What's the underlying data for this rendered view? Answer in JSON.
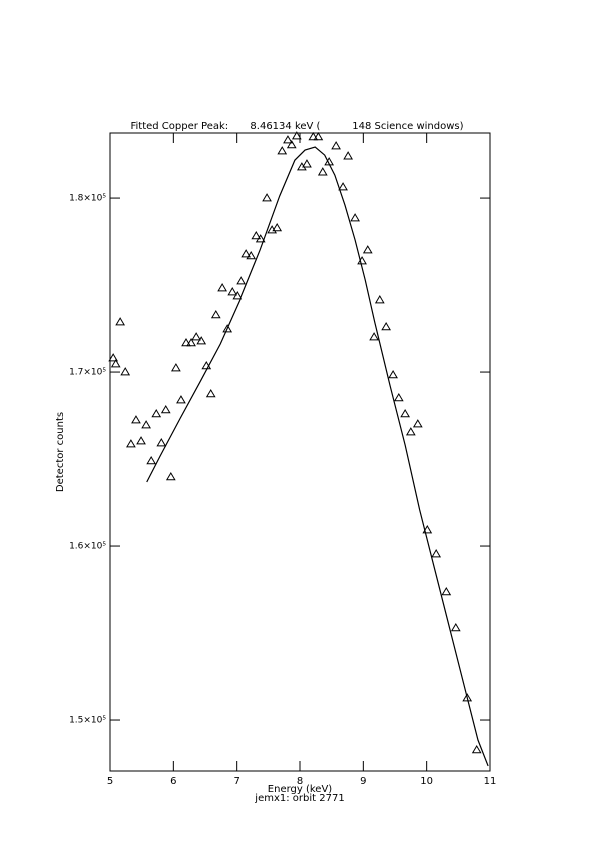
{
  "chart_data": {
    "type": "scatter",
    "title": "Fitted Copper Peak:       8.46134 keV (          148 Science windows)",
    "x_label": "Energy (keV)",
    "subtitle": "jemx1: orbit 2771",
    "y_label": "Detector counts",
    "xlim": [
      5,
      11
    ],
    "xticks": [
      5,
      6,
      7,
      8,
      9,
      10,
      11
    ],
    "ylim": [
      147070,
      183740
    ],
    "yticks": [
      {
        "value": 150000,
        "label": "1.5×10⁵"
      },
      {
        "value": 160000,
        "label": "1.6×10⁵"
      },
      {
        "value": 170000,
        "label": "1.7×10⁵"
      },
      {
        "value": 180000,
        "label": "1.8×10⁵"
      }
    ],
    "series": [
      {
        "type": "scatter",
        "marker": "triangle",
        "color": "#000000",
        "x": [
          5.05,
          5.09,
          5.16,
          5.24,
          5.33,
          5.41,
          5.49,
          5.57,
          5.65,
          5.73,
          5.81,
          5.88,
          5.96,
          6.04,
          6.12,
          6.2,
          6.28,
          6.36,
          6.44,
          6.52,
          6.59,
          6.67,
          6.77,
          6.85,
          6.93,
          7.01,
          7.07,
          7.15,
          7.23,
          7.31,
          7.38,
          7.48,
          7.56,
          7.64,
          7.72,
          7.81,
          7.87,
          7.95,
          8.03,
          8.11,
          8.21,
          8.29,
          8.36,
          8.46,
          8.57,
          8.68,
          8.76,
          8.87,
          8.98,
          9.07,
          9.17,
          9.26,
          9.36,
          9.47,
          9.56,
          9.66,
          9.75,
          9.86,
          10.01,
          10.15,
          10.31,
          10.46,
          10.64,
          10.79
        ],
        "values": [
          170800,
          170460,
          172870,
          170000,
          165860,
          167240,
          166030,
          166950,
          164890,
          167590,
          165920,
          167820,
          163970,
          170230,
          168390,
          171670,
          171670,
          172010,
          171780,
          170350,
          168740,
          173280,
          174830,
          172470,
          174600,
          174370,
          175230,
          176780,
          176670,
          177820,
          177640,
          180000,
          178160,
          178280,
          182700,
          183330,
          183050,
          183560,
          181780,
          181950,
          183510,
          183510,
          181490,
          182070,
          182990,
          180630,
          182410,
          178850,
          176380,
          177010,
          172010,
          174140,
          172590,
          169830,
          168510,
          167590,
          166550,
          167010,
          160920,
          159540,
          157360,
          155290,
          151260,
          148280
        ]
      },
      {
        "type": "line",
        "color": "#000000",
        "x": [
          5.58,
          5.79,
          6.11,
          6.42,
          6.74,
          7.05,
          7.37,
          7.68,
          7.92,
          8.08,
          8.24,
          8.39,
          8.55,
          8.71,
          8.87,
          9.03,
          9.18,
          9.42,
          9.66,
          9.89,
          10.13,
          10.37,
          10.61,
          10.81,
          10.97
        ],
        "values": [
          163680,
          165170,
          167360,
          169430,
          171610,
          174140,
          177010,
          180120,
          182180,
          182760,
          182930,
          182470,
          181320,
          179600,
          177590,
          175290,
          172870,
          169250,
          165810,
          162070,
          158620,
          155170,
          151720,
          148850,
          147360
        ]
      }
    ]
  }
}
